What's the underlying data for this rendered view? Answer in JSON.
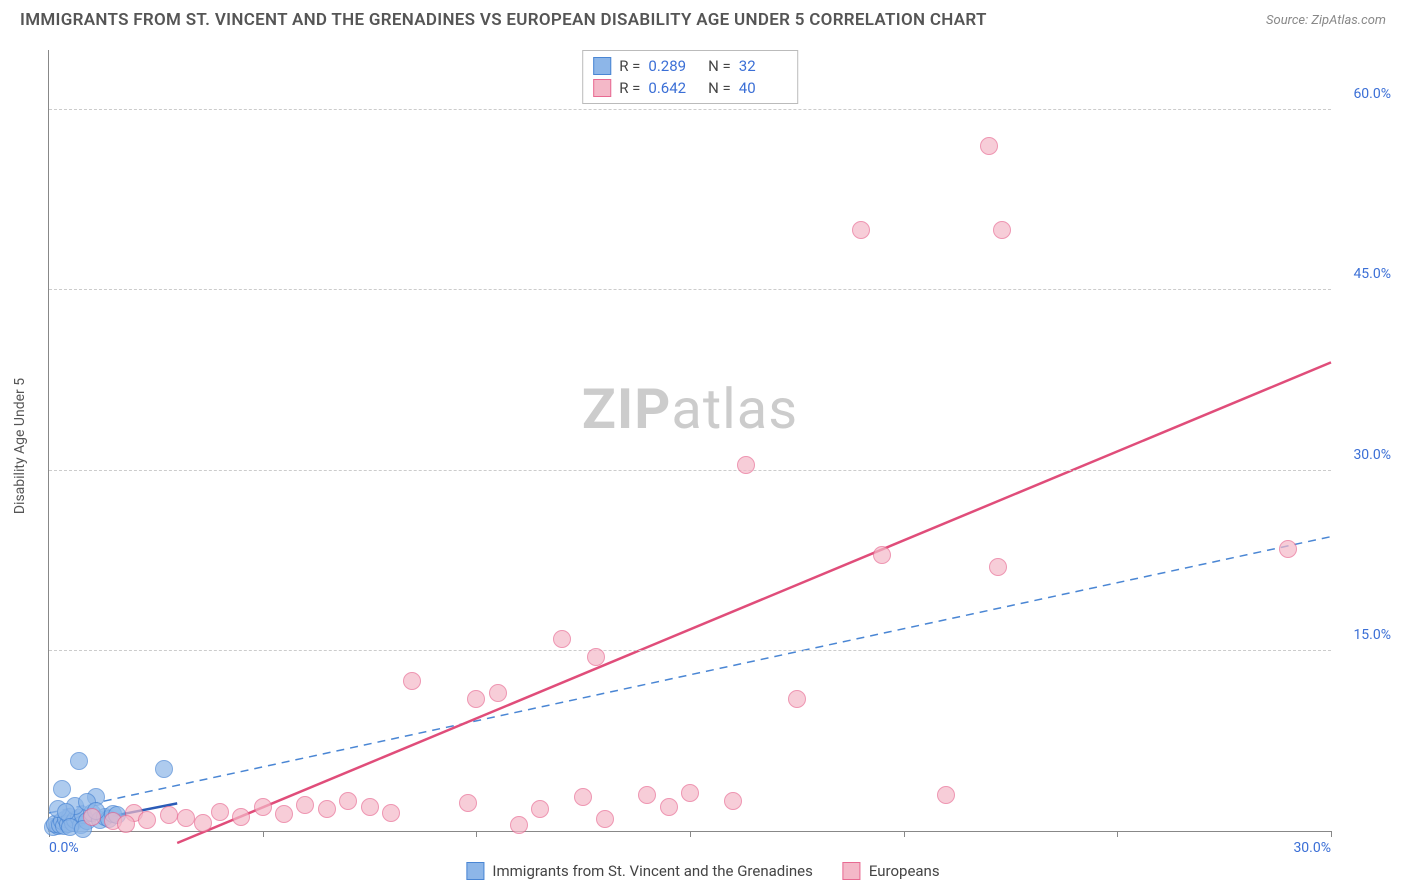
{
  "title": "IMMIGRANTS FROM ST. VINCENT AND THE GRENADINES VS EUROPEAN DISABILITY AGE UNDER 5 CORRELATION CHART",
  "source": "Source: ZipAtlas.com",
  "watermark_bold": "ZIP",
  "watermark_rest": "atlas",
  "y_axis_title": "Disability Age Under 5",
  "chart": {
    "type": "scatter",
    "xlim": [
      0,
      30
    ],
    "ylim": [
      0,
      65
    ],
    "x_ticks": [
      0,
      5,
      10,
      15,
      20,
      25,
      30
    ],
    "x_tick_labels": [
      "0.0%",
      "",
      "",
      "",
      "",
      "",
      "30.0%"
    ],
    "y_ticks": [
      15,
      30,
      45,
      60
    ],
    "y_tick_labels": [
      "15.0%",
      "30.0%",
      "45.0%",
      "60.0%"
    ],
    "grid_color": "#cccccc",
    "axis_color": "#888888",
    "background": "#ffffff",
    "marker_radius": 9,
    "marker_opacity": 0.35,
    "series": [
      {
        "name": "Immigrants from St. Vincent and the Grenadines",
        "color_fill": "#8db6e8",
        "color_stroke": "#4a86d4",
        "R": "0.289",
        "N": "32",
        "trend": {
          "x1": 0,
          "y1": 0.2,
          "x2": 3.0,
          "y2": 2.3,
          "dash": false,
          "width": 2.5,
          "color": "#2b5bb7"
        },
        "trend2": {
          "x1": 0,
          "y1": 1.5,
          "x2": 30,
          "y2": 24.5,
          "dash": true,
          "width": 1.5,
          "color": "#4a86d4"
        },
        "points": [
          [
            0.1,
            0.3
          ],
          [
            0.2,
            0.4
          ],
          [
            0.15,
            0.6
          ],
          [
            0.25,
            0.5
          ],
          [
            0.3,
            0.8
          ],
          [
            0.35,
            0.4
          ],
          [
            0.4,
            1.0
          ],
          [
            0.45,
            0.6
          ],
          [
            0.5,
            1.2
          ],
          [
            0.55,
            0.7
          ],
          [
            0.6,
            0.9
          ],
          [
            0.7,
            1.1
          ],
          [
            0.75,
            0.5
          ],
          [
            0.8,
            1.3
          ],
          [
            0.9,
            0.8
          ],
          [
            1.0,
            1.5
          ],
          [
            1.1,
            2.8
          ],
          [
            1.2,
            0.9
          ],
          [
            1.3,
            1.2
          ],
          [
            1.4,
            1.0
          ],
          [
            1.5,
            1.4
          ],
          [
            0.7,
            5.8
          ],
          [
            0.3,
            3.5
          ],
          [
            2.7,
            5.2
          ],
          [
            0.2,
            1.8
          ],
          [
            0.6,
            2.1
          ],
          [
            0.9,
            2.4
          ],
          [
            0.4,
            1.6
          ],
          [
            1.1,
            1.7
          ],
          [
            0.5,
            0.3
          ],
          [
            0.8,
            0.2
          ],
          [
            1.6,
            1.3
          ]
        ]
      },
      {
        "name": "Europeans",
        "color_fill": "#f4b8c8",
        "color_stroke": "#e86a92",
        "R": "0.642",
        "N": "40",
        "trend": {
          "x1": 3.0,
          "y1": -1,
          "x2": 30,
          "y2": 39,
          "dash": false,
          "width": 2.5,
          "color": "#e04d7a"
        },
        "points": [
          [
            1.0,
            1.2
          ],
          [
            1.5,
            0.8
          ],
          [
            2.0,
            1.5
          ],
          [
            2.3,
            0.9
          ],
          [
            2.8,
            1.3
          ],
          [
            3.2,
            1.1
          ],
          [
            3.6,
            0.7
          ],
          [
            4.0,
            1.6
          ],
          [
            4.5,
            1.2
          ],
          [
            5.0,
            2.0
          ],
          [
            5.5,
            1.4
          ],
          [
            6.0,
            2.2
          ],
          [
            6.5,
            1.8
          ],
          [
            7.0,
            2.5
          ],
          [
            7.5,
            2.0
          ],
          [
            8.0,
            1.5
          ],
          [
            8.5,
            12.5
          ],
          [
            9.8,
            2.3
          ],
          [
            10.0,
            11.0
          ],
          [
            10.5,
            11.5
          ],
          [
            11.5,
            1.8
          ],
          [
            12.0,
            16.0
          ],
          [
            12.5,
            2.8
          ],
          [
            12.8,
            14.5
          ],
          [
            14.0,
            3.0
          ],
          [
            14.5,
            2.0
          ],
          [
            15.0,
            3.2
          ],
          [
            16.0,
            2.5
          ],
          [
            16.3,
            30.5
          ],
          [
            17.5,
            11.0
          ],
          [
            19.0,
            50.0
          ],
          [
            19.5,
            23.0
          ],
          [
            21.0,
            3.0
          ],
          [
            22.0,
            57.0
          ],
          [
            22.2,
            22.0
          ],
          [
            22.3,
            50.0
          ],
          [
            29.0,
            23.5
          ],
          [
            11.0,
            0.5
          ],
          [
            13.0,
            1.0
          ],
          [
            1.8,
            0.6
          ]
        ]
      }
    ]
  },
  "bottom_legend": [
    {
      "label": "Immigrants from St. Vincent and the Grenadines",
      "fill": "#8db6e8",
      "stroke": "#4a86d4"
    },
    {
      "label": "Europeans",
      "fill": "#f4b8c8",
      "stroke": "#e86a92"
    }
  ]
}
